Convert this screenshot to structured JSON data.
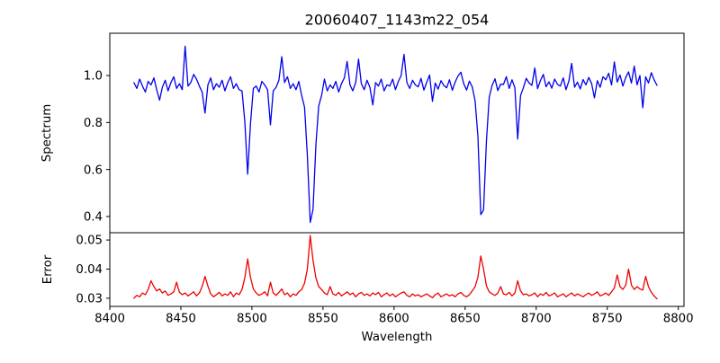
{
  "figure": {
    "title": "20060407_1143m22_054",
    "xlabel": "Wavelength",
    "background_color": "#ffffff",
    "spine_color": "#000000"
  },
  "chart_data": [
    {
      "type": "line",
      "name": "spectrum",
      "title": "20060407_1143m22_054",
      "ylabel": "Spectrum",
      "line_color": "#0000ee",
      "grid": false,
      "legend": "none",
      "xlim": [
        8400,
        8804
      ],
      "ylim": [
        0.331,
        1.18
      ],
      "x_tick_values": [
        8400,
        8450,
        8500,
        8550,
        8600,
        8650,
        8700,
        8750,
        8800
      ],
      "x_tick_labels": [
        "8400",
        "8450",
        "8500",
        "8550",
        "8600",
        "8650",
        "8700",
        "8750",
        "8800"
      ],
      "show_x_tick_labels": false,
      "y_tick_values": [
        0.4,
        0.6,
        0.8,
        1.0
      ],
      "y_tick_labels": [
        "0.4",
        "0.6",
        "0.8",
        "1.0"
      ],
      "x_start": 8417,
      "x_step": 2,
      "values": [
        0.97,
        0.945,
        0.985,
        0.955,
        0.93,
        0.975,
        0.96,
        0.99,
        0.94,
        0.895,
        0.95,
        0.98,
        0.935,
        0.97,
        0.995,
        0.945,
        0.965,
        0.94,
        1.125,
        0.955,
        0.97,
        1.005,
        0.985,
        0.955,
        0.93,
        0.84,
        0.96,
        0.99,
        0.94,
        0.965,
        0.95,
        0.98,
        0.935,
        0.97,
        0.995,
        0.945,
        0.965,
        0.94,
        0.935,
        0.805,
        0.58,
        0.795,
        0.945,
        0.955,
        0.93,
        0.975,
        0.96,
        0.94,
        0.79,
        0.935,
        0.95,
        0.98,
        1.08,
        0.97,
        0.995,
        0.945,
        0.965,
        0.94,
        0.975,
        0.915,
        0.865,
        0.66,
        0.375,
        0.43,
        0.705,
        0.87,
        0.915,
        0.985,
        0.935,
        0.96,
        0.945,
        0.975,
        0.93,
        0.965,
        0.99,
        1.06,
        0.96,
        0.935,
        0.97,
        1.07,
        0.965,
        0.94,
        0.98,
        0.95,
        0.875,
        0.97,
        0.955,
        0.985,
        0.935,
        0.96,
        0.955,
        0.985,
        0.94,
        0.975,
        1.0,
        1.09,
        0.97,
        0.945,
        0.98,
        0.96,
        0.952,
        0.988,
        0.938,
        0.972,
        1.002,
        0.89,
        0.968,
        0.942,
        0.978,
        0.958,
        0.948,
        0.982,
        0.937,
        0.972,
        0.998,
        1.014,
        0.966,
        0.938,
        0.976,
        0.952,
        0.892,
        0.742,
        0.408,
        0.428,
        0.722,
        0.908,
        0.958,
        0.986,
        0.936,
        0.963,
        0.962,
        0.995,
        0.945,
        0.982,
        0.948,
        0.73,
        0.915,
        0.948,
        0.988,
        0.968,
        0.958,
        1.032,
        0.944,
        0.979,
        1.005,
        0.952,
        0.973,
        0.946,
        0.985,
        0.962,
        0.955,
        0.99,
        0.94,
        0.977,
        1.052,
        0.95,
        0.972,
        0.943,
        0.983,
        0.96,
        0.992,
        0.965,
        0.905,
        0.978,
        0.95,
        0.995,
        0.982,
        1.01,
        0.96,
        1.058,
        0.972,
        1.002,
        0.955,
        0.992,
        1.015,
        0.968,
        1.04,
        0.96,
        1.0,
        0.863,
        0.995,
        0.968,
        1.012,
        0.982,
        0.958
      ]
    },
    {
      "type": "line",
      "name": "error",
      "ylabel": "Error",
      "xlabel": "Wavelength",
      "line_color": "#ee0000",
      "grid": false,
      "legend": "none",
      "xlim": [
        8400,
        8804
      ],
      "ylim": [
        0.0272,
        0.0525
      ],
      "x_tick_values": [
        8400,
        8450,
        8500,
        8550,
        8600,
        8650,
        8700,
        8750,
        8800
      ],
      "x_tick_labels": [
        "8400",
        "8450",
        "8500",
        "8550",
        "8600",
        "8650",
        "8700",
        "8750",
        "8800"
      ],
      "show_x_tick_labels": true,
      "y_tick_values": [
        0.03,
        0.04,
        0.05
      ],
      "y_tick_labels": [
        "0.03",
        "0.04",
        "0.05"
      ],
      "x_start": 8417,
      "x_step": 2,
      "values": [
        0.03,
        0.031,
        0.0305,
        0.0318,
        0.0312,
        0.033,
        0.036,
        0.034,
        0.0325,
        0.0332,
        0.0318,
        0.0325,
        0.031,
        0.0315,
        0.0322,
        0.0355,
        0.032,
        0.0312,
        0.0318,
        0.0308,
        0.0315,
        0.0322,
        0.0308,
        0.0318,
        0.034,
        0.0375,
        0.0342,
        0.0315,
        0.0305,
        0.0312,
        0.032,
        0.0308,
        0.0315,
        0.031,
        0.0322,
        0.0305,
        0.0318,
        0.0312,
        0.033,
        0.037,
        0.0435,
        0.0372,
        0.0332,
        0.0318,
        0.031,
        0.0315,
        0.0322,
        0.0308,
        0.0355,
        0.0318,
        0.031,
        0.032,
        0.0332,
        0.0312,
        0.0318,
        0.0305,
        0.0315,
        0.031,
        0.0322,
        0.033,
        0.0352,
        0.04,
        0.0515,
        0.043,
        0.037,
        0.034,
        0.033,
        0.0318,
        0.0312,
        0.034,
        0.0315,
        0.031,
        0.032,
        0.0308,
        0.0315,
        0.0322,
        0.0312,
        0.0318,
        0.0305,
        0.0315,
        0.032,
        0.031,
        0.0315,
        0.0308,
        0.0318,
        0.0312,
        0.032,
        0.0305,
        0.0312,
        0.0318,
        0.0308,
        0.0315,
        0.0305,
        0.0312,
        0.0318,
        0.0322,
        0.031,
        0.0305,
        0.0315,
        0.0308,
        0.0312,
        0.0305,
        0.031,
        0.0315,
        0.0308,
        0.0302,
        0.0312,
        0.0318,
        0.0305,
        0.031,
        0.0315,
        0.0308,
        0.0312,
        0.0305,
        0.0315,
        0.032,
        0.031,
        0.0305,
        0.0312,
        0.0325,
        0.034,
        0.0372,
        0.0445,
        0.04,
        0.0342,
        0.0322,
        0.0315,
        0.031,
        0.0318,
        0.034,
        0.0315,
        0.0312,
        0.032,
        0.0308,
        0.0318,
        0.036,
        0.0325,
        0.0312,
        0.0315,
        0.0308,
        0.0312,
        0.0318,
        0.0305,
        0.0315,
        0.031,
        0.032,
        0.0308,
        0.0312,
        0.0318,
        0.0305,
        0.031,
        0.0315,
        0.0305,
        0.0312,
        0.0318,
        0.0308,
        0.0315,
        0.031,
        0.0305,
        0.0312,
        0.0318,
        0.031,
        0.0315,
        0.0322,
        0.0308,
        0.0312,
        0.0318,
        0.031,
        0.0322,
        0.0335,
        0.038,
        0.034,
        0.033,
        0.0345,
        0.04,
        0.0345,
        0.033,
        0.034,
        0.0332,
        0.0328,
        0.0375,
        0.034,
        0.032,
        0.0308,
        0.0298
      ]
    }
  ]
}
